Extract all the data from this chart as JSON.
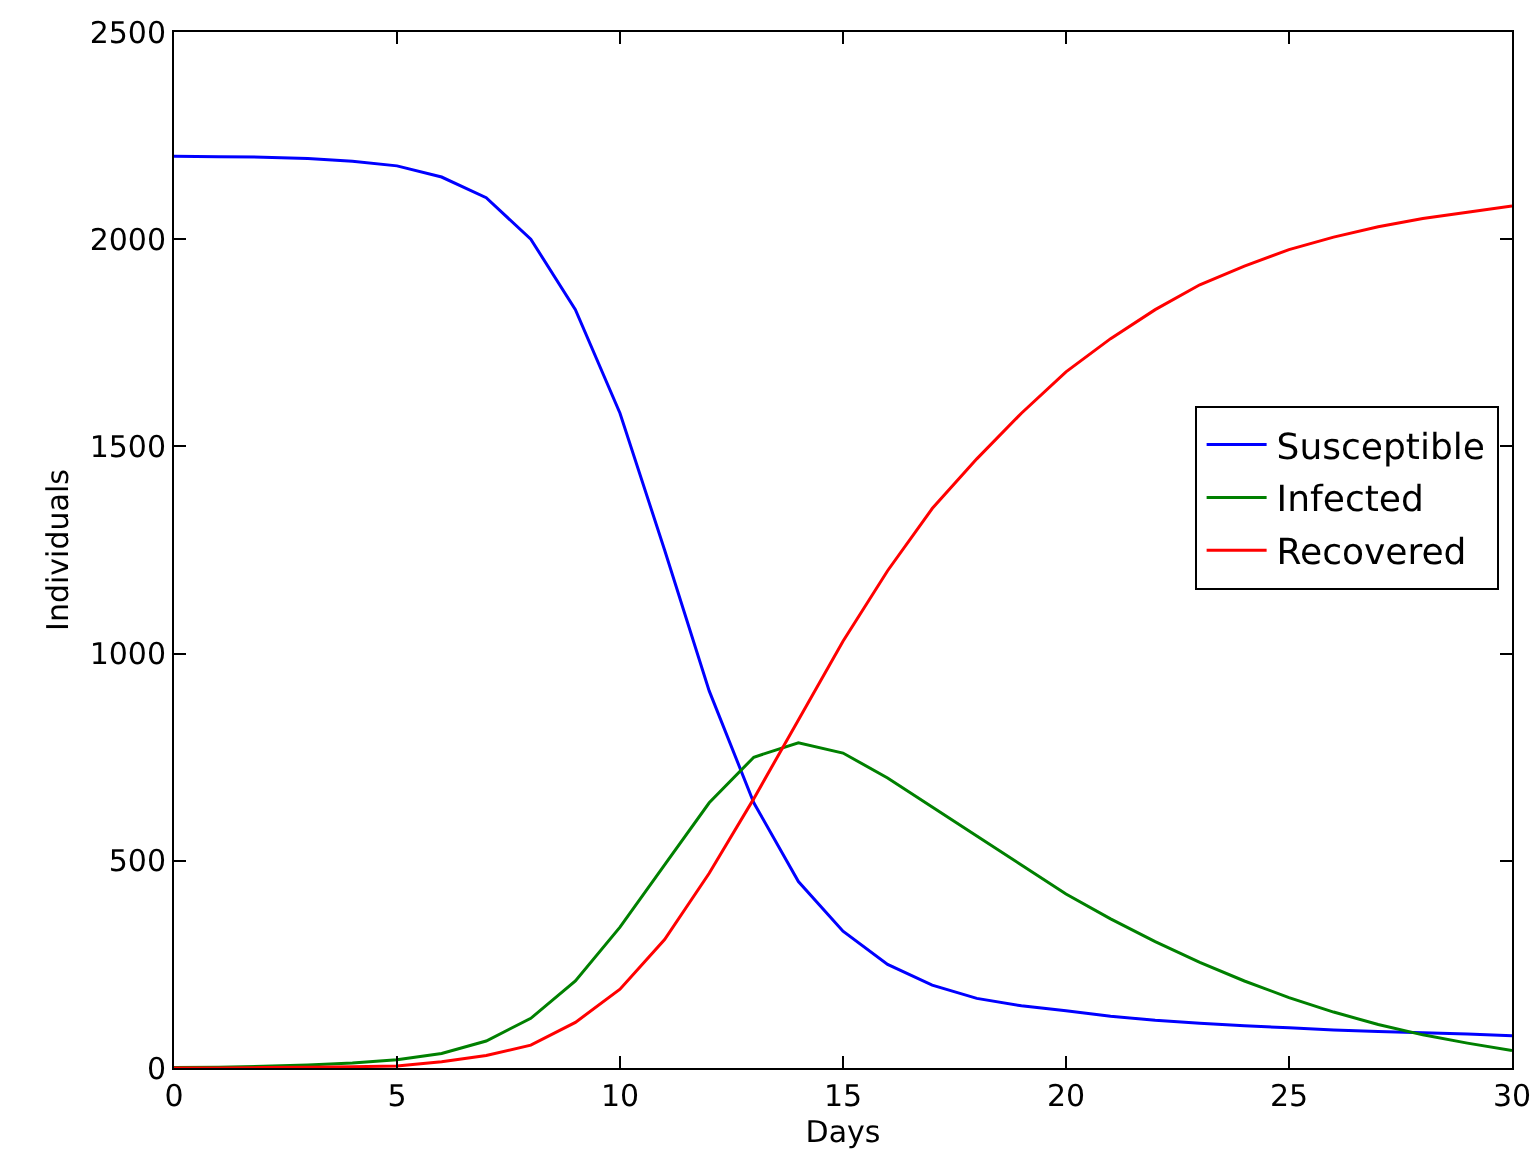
{
  "chart_data": {
    "type": "line",
    "xlabel": "Days",
    "ylabel": "Individuals",
    "x": [
      0,
      1,
      2,
      3,
      4,
      5,
      6,
      7,
      8,
      9,
      10,
      11,
      12,
      13,
      14,
      15,
      16,
      17,
      18,
      19,
      20,
      21,
      22,
      23,
      24,
      25,
      26,
      27,
      28,
      29,
      30
    ],
    "series": [
      {
        "name": "Susceptible",
        "color": "#0000ff",
        "values": [
          2200,
          2199,
          2198,
          2195,
          2188,
          2177,
          2150,
          2100,
          2000,
          1830,
          1580,
          1250,
          910,
          640,
          450,
          330,
          250,
          200,
          168,
          150,
          138,
          125,
          115,
          108,
          102,
          97,
          92,
          88,
          85,
          82,
          78
        ]
      },
      {
        "name": "Infected",
        "color": "#008000",
        "values": [
          1,
          2,
          4,
          7,
          12,
          20,
          35,
          65,
          120,
          210,
          340,
          490,
          640,
          750,
          785,
          760,
          700,
          630,
          560,
          490,
          420,
          360,
          305,
          255,
          210,
          170,
          135,
          105,
          80,
          60,
          42
        ]
      },
      {
        "name": "Recovered",
        "color": "#ff0000",
        "values": [
          0,
          0,
          1,
          2,
          3,
          5,
          15,
          30,
          55,
          110,
          190,
          310,
          470,
          650,
          840,
          1030,
          1200,
          1350,
          1470,
          1580,
          1680,
          1760,
          1830,
          1890,
          1935,
          1975,
          2005,
          2030,
          2050,
          2065,
          2080
        ]
      }
    ],
    "xlim": [
      0,
      30
    ],
    "xticks": [
      0,
      5,
      10,
      15,
      20,
      25,
      30
    ],
    "ylim": [
      0,
      2500
    ],
    "yticks": [
      0,
      500,
      1000,
      1500,
      2000,
      2500
    ],
    "grid": false,
    "legend": "right",
    "marker": "none",
    "line_style": "solid"
  }
}
